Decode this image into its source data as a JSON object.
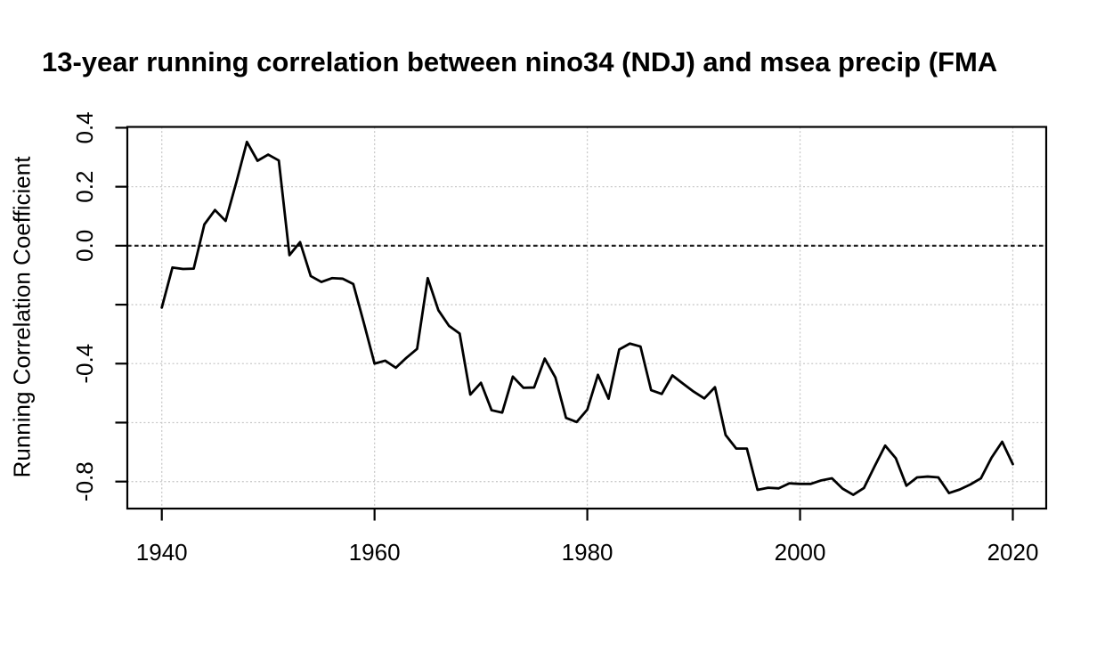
{
  "page": {
    "background_color": "#ffffff",
    "text_color": "#000000"
  },
  "chart_data": {
    "type": "line",
    "title": "13-year running correlation between nino34 (NDJ) and msea precip (FMA",
    "xlabel": "",
    "ylabel": "Running Correlation Coefficient",
    "legend": "none",
    "grid": true,
    "grid_style": "dashed",
    "grid_color": "#c9c9c9",
    "line_color": "#000000",
    "zero_line": {
      "y": 0,
      "style": "dashed",
      "color": "#1f1f1f"
    },
    "xlim": [
      1936.76,
      2023.14
    ],
    "ylim": [
      -0.8916,
      0.4028
    ],
    "xticks": [
      1940,
      1960,
      1980,
      2000,
      2020
    ],
    "xtick_labels": [
      "1940",
      "1960",
      "1980",
      "2000",
      "2020"
    ],
    "ytick_marks": [
      0.4,
      0.2,
      0.0,
      -0.2,
      -0.4,
      -0.6,
      -0.8
    ],
    "ytick_labeled": [
      {
        "value": 0.4,
        "label": "0.4"
      },
      {
        "value": 0.2,
        "label": "0.2"
      },
      {
        "value": 0.0,
        "label": "0.0"
      },
      {
        "value": -0.4,
        "label": "-0.4"
      },
      {
        "value": -0.8,
        "label": "-0.8"
      }
    ],
    "x": [
      1940,
      1941,
      1942,
      1943,
      1944,
      1945,
      1946,
      1947,
      1948,
      1949,
      1950,
      1951,
      1952,
      1953,
      1954,
      1955,
      1956,
      1957,
      1958,
      1959,
      1960,
      1961,
      1962,
      1963,
      1964,
      1965,
      1966,
      1967,
      1968,
      1969,
      1970,
      1971,
      1972,
      1973,
      1974,
      1975,
      1976,
      1977,
      1978,
      1979,
      1980,
      1981,
      1982,
      1983,
      1984,
      1985,
      1986,
      1987,
      1988,
      1989,
      1990,
      1991,
      1992,
      1993,
      1994,
      1995,
      1996,
      1997,
      1998,
      1999,
      2000,
      2001,
      2002,
      2003,
      2004,
      2005,
      2006,
      2007,
      2008,
      2009,
      2010,
      2011,
      2012,
      2013,
      2014,
      2015,
      2016,
      2017,
      2018,
      2019,
      2020
    ],
    "series": [
      {
        "name": "13-year running correlation",
        "values": [
          -0.21,
          -0.074,
          -0.079,
          -0.078,
          0.072,
          0.121,
          0.084,
          0.214,
          0.352,
          0.288,
          0.309,
          0.289,
          -0.032,
          0.012,
          -0.103,
          -0.123,
          -0.11,
          -0.112,
          -0.13,
          -0.263,
          -0.4,
          -0.39,
          -0.414,
          -0.38,
          -0.35,
          -0.11,
          -0.219,
          -0.272,
          -0.298,
          -0.505,
          -0.465,
          -0.558,
          -0.566,
          -0.444,
          -0.482,
          -0.481,
          -0.383,
          -0.447,
          -0.584,
          -0.598,
          -0.556,
          -0.438,
          -0.519,
          -0.352,
          -0.332,
          -0.342,
          -0.49,
          -0.503,
          -0.44,
          -0.468,
          -0.495,
          -0.518,
          -0.48,
          -0.642,
          -0.688,
          -0.688,
          -0.828,
          -0.821,
          -0.823,
          -0.806,
          -0.808,
          -0.808,
          -0.796,
          -0.789,
          -0.824,
          -0.845,
          -0.822,
          -0.749,
          -0.678,
          -0.721,
          -0.814,
          -0.786,
          -0.783,
          -0.786,
          -0.839,
          -0.827,
          -0.81,
          -0.789,
          -0.719,
          -0.665,
          -0.741
        ]
      }
    ]
  }
}
